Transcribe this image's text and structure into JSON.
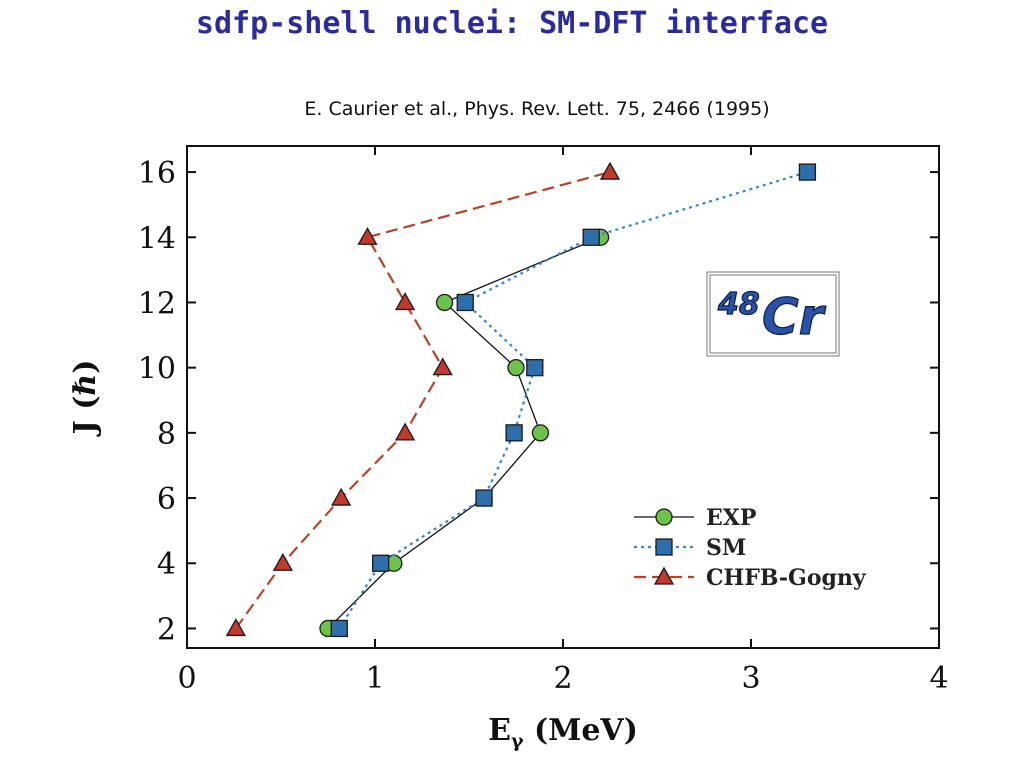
{
  "slide": {
    "title": "sdfp-shell nuclei: SM-DFT interface",
    "citation": "E. Caurier et al., Phys. Rev. Lett. 75, 2466 (1995)"
  },
  "chart_data": {
    "type": "line",
    "xlabel_main": "E",
    "xlabel_sub": "γ",
    "xlabel_rest": " (MeV)",
    "ylabel": "J (ℏ)",
    "xlim": [
      0,
      4
    ],
    "ylim": [
      1.4,
      16.8
    ],
    "xticks": [
      0,
      1,
      2,
      3,
      4
    ],
    "yticks": [
      2,
      4,
      6,
      8,
      10,
      12,
      14,
      16
    ],
    "annotation": {
      "mass": "48",
      "symbol": "Cr"
    },
    "legend_position": "bottom-right",
    "series": [
      {
        "name": "EXP",
        "color": "#111111",
        "line": "solid",
        "marker": "circle",
        "marker_color": "#6cc24a",
        "points": [
          [
            0.75,
            2
          ],
          [
            1.1,
            4
          ],
          [
            1.58,
            6
          ],
          [
            1.88,
            8
          ],
          [
            1.75,
            10
          ],
          [
            1.37,
            12
          ],
          [
            2.2,
            14
          ]
        ]
      },
      {
        "name": "SM",
        "color": "#3a86c8",
        "line": "dotted",
        "marker": "square",
        "marker_color": "#2e6eaa",
        "points": [
          [
            0.81,
            2
          ],
          [
            1.03,
            4
          ],
          [
            1.58,
            6
          ],
          [
            1.74,
            8
          ],
          [
            1.85,
            10
          ],
          [
            1.48,
            12
          ],
          [
            2.15,
            14
          ],
          [
            3.3,
            16
          ]
        ]
      },
      {
        "name": "CHFB-Gogny",
        "color": "#b5442a",
        "line": "dashed",
        "marker": "triangle",
        "marker_color": "#c0392b",
        "points": [
          [
            0.26,
            2
          ],
          [
            0.51,
            4
          ],
          [
            0.82,
            6
          ],
          [
            1.16,
            8
          ],
          [
            1.36,
            10
          ],
          [
            1.16,
            12
          ],
          [
            0.96,
            14
          ],
          [
            2.25,
            16
          ]
        ]
      }
    ]
  }
}
